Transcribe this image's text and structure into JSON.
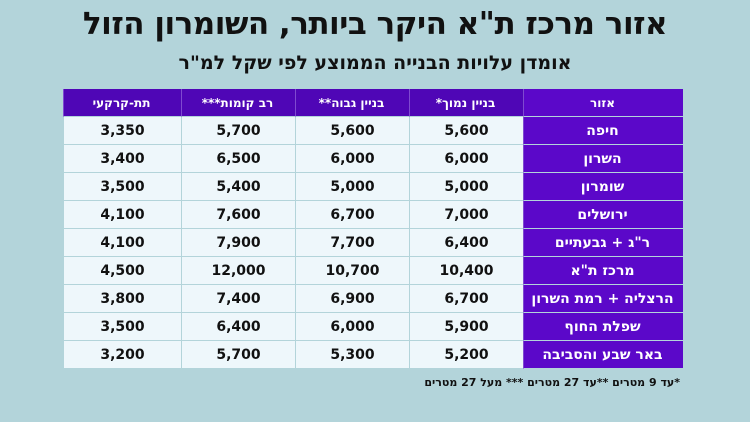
{
  "title": "אזור מרכז ת\"א היקר ביותר, השומרון הזול",
  "subtitle": "אומדן עלויות הבנייה הממוצע לפי שקל למ\"ר",
  "table": {
    "headers": {
      "region": "אזור",
      "low": "בניין נמוך*",
      "high": "בניין גבוה**",
      "multi": "רב קומות***",
      "underground": "תת-קרקעי"
    },
    "rows": [
      {
        "region": "חיפה",
        "low": "5,600",
        "high": "5,600",
        "multi": "5,700",
        "underground": "3,350"
      },
      {
        "region": "השרון",
        "low": "6,000",
        "high": "6,000",
        "multi": "6,500",
        "underground": "3,400"
      },
      {
        "region": "שומרון",
        "low": "5,000",
        "high": "5,000",
        "multi": "5,400",
        "underground": "3,500"
      },
      {
        "region": "ירושלים",
        "low": "7,000",
        "high": "6,700",
        "multi": "7,600",
        "underground": "4,100"
      },
      {
        "region": "ר\"ג + גבעתיים",
        "low": "6,400",
        "high": "7,700",
        "multi": "7,900",
        "underground": "4,100"
      },
      {
        "region": "מרכז ת\"א",
        "low": "10,400",
        "high": "10,700",
        "multi": "12,000",
        "underground": "4,500"
      },
      {
        "region": "הרצליה + רמת השרון",
        "low": "6,700",
        "high": "6,900",
        "multi": "7,400",
        "underground": "3,800"
      },
      {
        "region": "שפלת החוף",
        "low": "5,900",
        "high": "6,000",
        "multi": "6,400",
        "underground": "3,500"
      },
      {
        "region": "באר שבע והסביבה",
        "low": "5,200",
        "high": "5,300",
        "multi": "5,700",
        "underground": "3,200"
      }
    ]
  },
  "footnote": "*עד 9 מטרים  **עד 27 מטרים  *** מעל 27 מטרים",
  "colors": {
    "background": "#b3d4da",
    "header_purple": "#4f06b6",
    "region_purple": "#5b08c9",
    "cell_bg": "#eef7fb"
  }
}
